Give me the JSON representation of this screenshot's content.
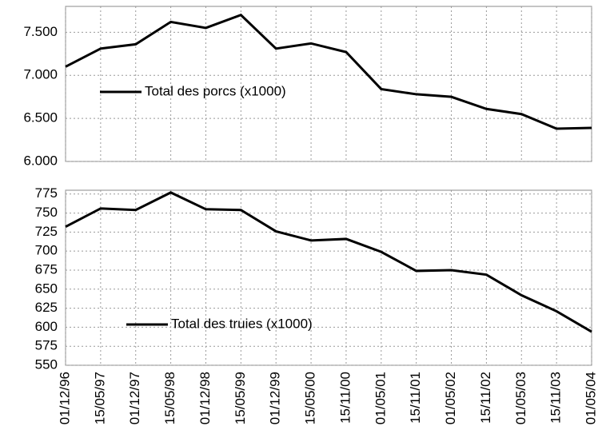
{
  "chart_data": [
    {
      "type": "line",
      "series": [
        {
          "name": "Total des porcs (x1000)",
          "color": "#000000",
          "values": [
            7100,
            7310,
            7360,
            7620,
            7550,
            7700,
            7310,
            7370,
            7270,
            6840,
            6780,
            6750,
            6610,
            6550,
            6380,
            6390
          ]
        }
      ],
      "ylim": [
        6000,
        7800
      ],
      "yticks": [
        {
          "value": 6000,
          "label": "6.000"
        },
        {
          "value": 6500,
          "label": "6.500"
        },
        {
          "value": 7000,
          "label": "7.000"
        },
        {
          "value": 7500,
          "label": "7.500"
        }
      ],
      "grid": true
    },
    {
      "type": "line",
      "categories": [
        "01/12/96",
        "15/05/97",
        "01/12/97",
        "15/05/98",
        "01/12/98",
        "15/05/99",
        "01/12/99",
        "15/05/00",
        "15/11/00",
        "01/05/01",
        "15/11/01",
        "01/05/02",
        "15/11/02",
        "01/05/03",
        "15/11/03",
        "01/05/04"
      ],
      "series": [
        {
          "name": "Total des truies (x1000)",
          "color": "#000000",
          "values": [
            732,
            756,
            754,
            777,
            755,
            754,
            726,
            714,
            716,
            699,
            674,
            675,
            669,
            642,
            621,
            594
          ]
        }
      ],
      "ylim": [
        550,
        780
      ],
      "yticks": [
        550,
        575,
        600,
        625,
        650,
        675,
        700,
        725,
        750,
        775
      ],
      "grid": true
    }
  ]
}
